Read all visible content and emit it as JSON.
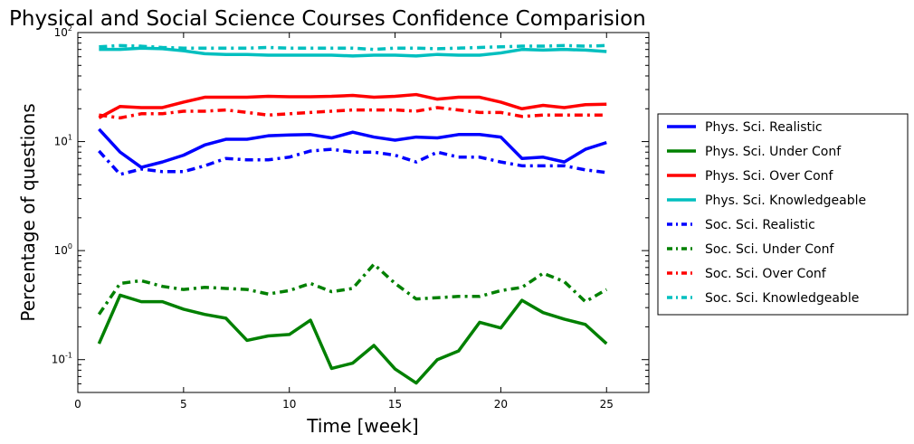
{
  "chart_data": {
    "type": "line",
    "title": "Physical and Social Science Courses Confidence Comparision",
    "xlabel": "Time [week]",
    "ylabel": "Percentage of questions",
    "xlim": [
      0,
      27
    ],
    "ylim": [
      0.05,
      100
    ],
    "yscale": "log",
    "x_ticks": [
      0,
      5,
      10,
      15,
      20,
      25
    ],
    "x_tick_labels": [
      "0",
      "5",
      "10",
      "15",
      "20",
      "25"
    ],
    "y_ticks": [
      0.1,
      1,
      10,
      100
    ],
    "y_tick_labels": [
      {
        "base": "10",
        "exp": "-1"
      },
      {
        "base": "10",
        "exp": "0"
      },
      {
        "base": "10",
        "exp": "1"
      },
      {
        "base": "10",
        "exp": "2"
      }
    ],
    "legend_position": "right, outside plot",
    "x": [
      1,
      2,
      3,
      4,
      5,
      6,
      7,
      8,
      9,
      10,
      11,
      12,
      13,
      14,
      15,
      16,
      17,
      18,
      19,
      20,
      21,
      22,
      23,
      24,
      25
    ],
    "series": [
      {
        "name": "Phys. Sci. Realistic",
        "color": "#0000ff",
        "style": "solid",
        "values": [
          13.0,
          8.0,
          5.8,
          6.5,
          7.5,
          9.3,
          10.5,
          10.5,
          11.3,
          11.5,
          11.6,
          10.8,
          12.2,
          11.0,
          10.3,
          11.0,
          10.8,
          11.6,
          11.6,
          11.0,
          7.0,
          7.2,
          6.5,
          8.5,
          9.8
        ]
      },
      {
        "name": "Phys. Sci. Under Conf",
        "color": "#008000",
        "style": "solid",
        "values": [
          0.14,
          0.39,
          0.34,
          0.34,
          0.29,
          0.26,
          0.24,
          0.15,
          0.165,
          0.17,
          0.23,
          0.083,
          0.093,
          0.135,
          0.082,
          0.061,
          0.1,
          0.12,
          0.22,
          0.195,
          0.35,
          0.27,
          0.235,
          0.21,
          0.14
        ]
      },
      {
        "name": "Phys. Sci. Over Conf",
        "color": "#ff0000",
        "style": "solid",
        "values": [
          16.5,
          21.0,
          20.5,
          20.5,
          23.0,
          25.5,
          25.5,
          25.5,
          26.0,
          25.8,
          25.8,
          26.0,
          26.5,
          25.5,
          26.0,
          27.0,
          24.5,
          25.5,
          25.5,
          23.0,
          20.0,
          21.5,
          20.5,
          21.8,
          22.0
        ]
      },
      {
        "name": "Phys. Sci. Knowledgeable",
        "color": "#00bfbf",
        "style": "solid",
        "values": [
          70,
          70,
          72,
          71,
          68,
          64,
          63,
          63,
          62,
          62,
          62,
          62,
          61,
          62,
          62,
          61,
          63,
          62,
          62,
          65,
          70,
          69,
          70,
          69,
          67
        ]
      },
      {
        "name": "Soc. Sci. Realistic",
        "color": "#0000ff",
        "style": "dashdot",
        "values": [
          8.2,
          5.0,
          5.6,
          5.3,
          5.3,
          6.0,
          7.0,
          6.8,
          6.8,
          7.2,
          8.2,
          8.5,
          8.0,
          8.0,
          7.5,
          6.5,
          8.0,
          7.2,
          7.2,
          6.5,
          6.0,
          6.0,
          6.0,
          5.5,
          5.2
        ]
      },
      {
        "name": "Soc. Sci. Under Conf",
        "color": "#008000",
        "style": "dashdot",
        "values": [
          0.26,
          0.5,
          0.53,
          0.47,
          0.44,
          0.46,
          0.45,
          0.44,
          0.4,
          0.43,
          0.5,
          0.42,
          0.45,
          0.75,
          0.5,
          0.36,
          0.37,
          0.38,
          0.38,
          0.43,
          0.46,
          0.62,
          0.52,
          0.34,
          0.44
        ]
      },
      {
        "name": "Soc. Sci. Over Conf",
        "color": "#ff0000",
        "style": "dashdot",
        "values": [
          17.5,
          16.5,
          18.0,
          18.0,
          19.0,
          19.0,
          19.5,
          18.5,
          17.5,
          18.0,
          18.5,
          19.0,
          19.5,
          19.5,
          19.5,
          19.0,
          20.5,
          19.5,
          18.5,
          18.5,
          17.0,
          17.5,
          17.5,
          17.5,
          17.5
        ]
      },
      {
        "name": "Soc. Sci. Knowledgeable",
        "color": "#00bfbf",
        "style": "dashdot",
        "values": [
          74,
          76,
          75,
          73,
          72,
          72,
          72,
          72,
          73,
          72,
          72,
          72,
          72,
          70,
          72,
          72,
          71,
          72,
          73,
          74,
          75,
          75,
          76,
          75,
          76
        ]
      }
    ]
  }
}
